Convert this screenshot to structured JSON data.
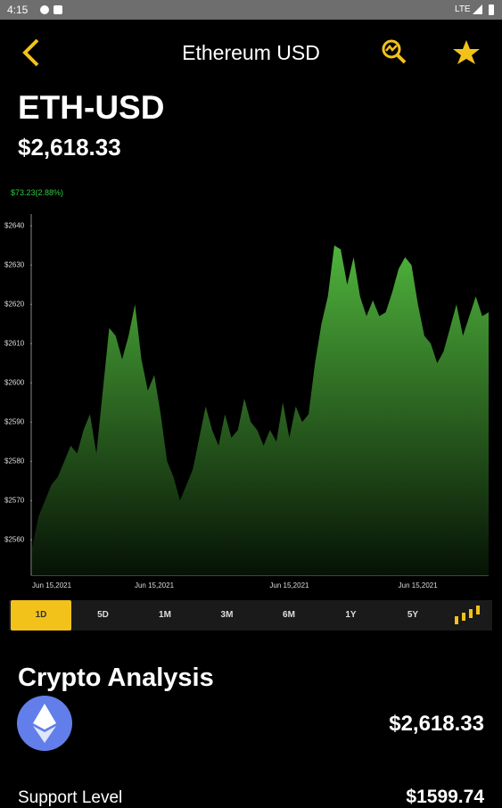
{
  "status_bar": {
    "time": "4:15",
    "network": "LTE"
  },
  "header": {
    "title": "Ethereum USD"
  },
  "quote": {
    "symbol": "ETH-USD",
    "price": "$2,618.33",
    "change": "$73.23(2.88%)"
  },
  "chart_data": {
    "type": "area",
    "color": "#4fb33c",
    "grid": false,
    "categories": [
      "Jun 15,2021",
      null,
      null,
      null,
      null,
      null,
      null,
      null,
      null,
      null,
      null,
      null,
      null,
      null,
      null,
      null,
      null,
      null,
      null,
      "Jun 15,2021",
      null,
      null,
      null,
      null,
      null,
      null,
      null,
      null,
      null,
      null,
      null,
      null,
      null,
      null,
      null,
      null,
      null,
      null,
      null,
      null,
      "Jun 15,2021",
      null,
      null,
      null,
      null,
      null,
      null,
      null,
      null,
      null,
      null,
      null,
      null,
      null,
      null,
      null,
      null,
      null,
      null,
      null,
      "Jun 15,2021",
      null,
      null,
      null,
      null,
      null,
      null,
      null,
      null,
      null,
      null,
      null
    ],
    "values": [
      2558,
      2566,
      2570,
      2574,
      2576,
      2580,
      2584,
      2582,
      2588,
      2592,
      2582,
      2598,
      2614,
      2612,
      2606,
      2612,
      2620,
      2606,
      2598,
      2602,
      2592,
      2580,
      2576,
      2570,
      2574,
      2578,
      2586,
      2594,
      2588,
      2584,
      2592,
      2586,
      2588,
      2596,
      2590,
      2588,
      2584,
      2588,
      2585,
      2595,
      2586,
      2594,
      2590,
      2592,
      2605,
      2615,
      2622,
      2635,
      2634,
      2625,
      2632,
      2622,
      2617,
      2621,
      2617,
      2618,
      2623,
      2629,
      2632,
      2630,
      2620,
      2612,
      2610,
      2605,
      2608,
      2614,
      2620,
      2612,
      2617,
      2622,
      2617,
      2618
    ],
    "ylim": [
      2551,
      2643
    ],
    "yticks": [
      {
        "value": 2560,
        "label": "$2560"
      },
      {
        "value": 2570,
        "label": "$2570"
      },
      {
        "value": 2580,
        "label": "$2580"
      },
      {
        "value": 2590,
        "label": "$2590"
      },
      {
        "value": 2600,
        "label": "$2600"
      },
      {
        "value": 2610,
        "label": "$2610"
      },
      {
        "value": 2620,
        "label": "$2620"
      },
      {
        "value": 2630,
        "label": "$2630"
      },
      {
        "value": 2640,
        "label": "$2640"
      }
    ]
  },
  "ranges": {
    "options": [
      "1D",
      "5D",
      "1M",
      "3M",
      "6M",
      "1Y",
      "5Y"
    ],
    "selected": "1D"
  },
  "analysis": {
    "title": "Crypto Analysis",
    "price": "$2,618.33",
    "support_label": "Support Level",
    "support_value": "$1599.74"
  }
}
